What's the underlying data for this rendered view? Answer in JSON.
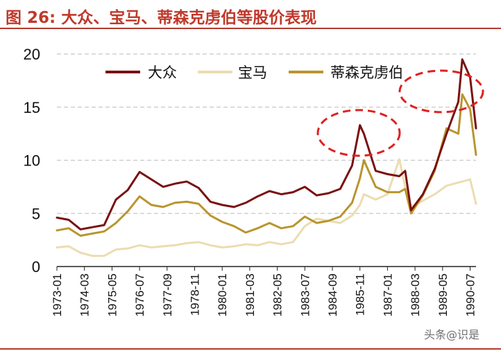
{
  "figure": {
    "title": "图 26: 大众、宝马、蒂森克虏伯等股价表现",
    "watermark": "头条@识是"
  },
  "chart_data": {
    "type": "line",
    "xlabel": "",
    "ylabel": "",
    "ylim": [
      0,
      20
    ],
    "yticks": [
      0,
      5,
      10,
      15,
      20
    ],
    "grid": "horizontal dashed",
    "legend_position": "top-left",
    "x": [
      "1973-01",
      "1973-07",
      "1974-01",
      "1974-07",
      "1975-01",
      "1975-07",
      "1976-01",
      "1976-07",
      "1977-01",
      "1977-07",
      "1978-01",
      "1978-07",
      "1979-01",
      "1979-07",
      "1980-01",
      "1980-07",
      "1981-01",
      "1981-07",
      "1982-01",
      "1982-07",
      "1983-01",
      "1983-07",
      "1984-01",
      "1984-07",
      "1985-01",
      "1985-07",
      "1985-11",
      "1986-01",
      "1986-07",
      "1987-01",
      "1987-07",
      "1987-10",
      "1988-01",
      "1988-07",
      "1989-01",
      "1989-07",
      "1990-01",
      "1990-03",
      "1990-07",
      "1990-10"
    ],
    "x_tick_labels": [
      "1973-01",
      "1974-03",
      "1975-05",
      "1976-07",
      "1977-09",
      "1978-11",
      "1980-01",
      "1981-03",
      "1982-05",
      "1983-07",
      "1984-09",
      "1985-11",
      "1987-01",
      "1988-03",
      "1989-05",
      "1990-07"
    ],
    "series": [
      {
        "name": "大众",
        "color": "#7a1010",
        "values": [
          4.6,
          4.4,
          3.5,
          3.7,
          3.9,
          6.3,
          7.2,
          8.9,
          8.2,
          7.5,
          7.8,
          8.0,
          7.4,
          6.1,
          5.8,
          5.6,
          6.0,
          6.6,
          7.1,
          6.8,
          7.0,
          7.5,
          6.7,
          6.9,
          7.3,
          9.5,
          13.3,
          12.5,
          9.0,
          8.7,
          8.5,
          9.0,
          5.3,
          6.8,
          9.2,
          12.5,
          15.5,
          19.5,
          17.8,
          13.0
        ]
      },
      {
        "name": "宝马",
        "color": "#ecdcb0",
        "values": [
          1.8,
          1.9,
          1.3,
          1.0,
          1.0,
          1.6,
          1.7,
          2.0,
          1.8,
          1.9,
          2.0,
          2.2,
          2.3,
          2.0,
          1.8,
          1.9,
          2.1,
          2.0,
          2.3,
          2.1,
          2.3,
          3.8,
          4.5,
          4.3,
          4.1,
          4.8,
          5.8,
          6.8,
          6.3,
          6.8,
          10.1,
          7.5,
          5.6,
          6.2,
          6.8,
          7.6,
          7.9,
          8.0,
          8.2,
          5.9
        ]
      },
      {
        "name": "蒂森克虏伯",
        "color": "#b8952e",
        "values": [
          3.4,
          3.6,
          2.9,
          3.1,
          3.3,
          4.1,
          5.2,
          6.6,
          5.8,
          5.6,
          6.0,
          6.1,
          5.9,
          4.8,
          4.2,
          3.8,
          3.2,
          3.6,
          4.1,
          3.6,
          3.8,
          4.7,
          4.1,
          4.3,
          4.7,
          6.0,
          8.3,
          10.0,
          7.5,
          7.0,
          7.0,
          7.3,
          5.0,
          6.7,
          9.0,
          13.0,
          12.5,
          16.2,
          14.8,
          10.5
        ]
      }
    ],
    "annotations": [
      {
        "type": "dashed-ellipse",
        "color": "#e02020",
        "around": "1985-11 peak"
      },
      {
        "type": "dashed-ellipse",
        "color": "#e02020",
        "around": "1990 peak"
      }
    ]
  }
}
